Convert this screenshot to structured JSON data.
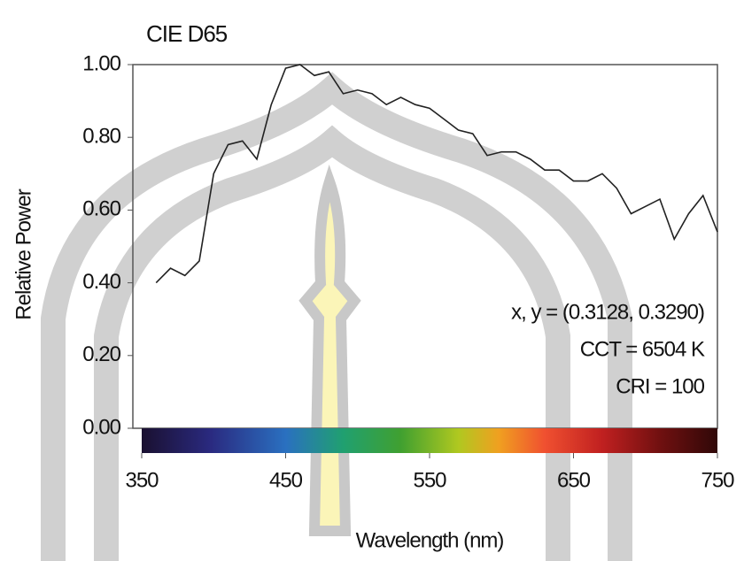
{
  "chart_data": {
    "type": "line",
    "title": "CIE D65",
    "x_label": "Wavelength (nm)",
    "y_label": "Relative Power",
    "x": [
      360,
      370,
      380,
      390,
      400,
      410,
      420,
      430,
      440,
      450,
      460,
      470,
      480,
      490,
      500,
      510,
      520,
      530,
      540,
      550,
      560,
      570,
      580,
      590,
      600,
      610,
      620,
      630,
      640,
      650,
      660,
      670,
      680,
      690,
      700,
      710,
      720,
      730,
      740,
      750
    ],
    "values": [
      0.4,
      0.44,
      0.42,
      0.46,
      0.7,
      0.78,
      0.79,
      0.74,
      0.89,
      0.99,
      1.0,
      0.97,
      0.98,
      0.92,
      0.93,
      0.92,
      0.89,
      0.91,
      0.89,
      0.88,
      0.85,
      0.82,
      0.81,
      0.75,
      0.76,
      0.76,
      0.74,
      0.71,
      0.71,
      0.68,
      0.68,
      0.7,
      0.66,
      0.59,
      0.61,
      0.63,
      0.52,
      0.59,
      0.64,
      0.54
    ],
    "color": "#222222",
    "xlim": [
      350,
      750
    ],
    "xticks": [
      350,
      450,
      550,
      650,
      750
    ],
    "ylim": [
      0,
      1
    ],
    "yticks": [
      {
        "value": 0,
        "label": "0.00"
      },
      {
        "value": 0.2,
        "label": "0.20"
      },
      {
        "value": 0.4,
        "label": "0.40"
      },
      {
        "value": 0.6,
        "label": "0.60"
      },
      {
        "value": 0.8,
        "label": "0.80"
      },
      {
        "value": 1,
        "label": "1.00"
      }
    ],
    "annotations": [
      "x, y = (0.3128, 0.3290)",
      "CCT = 6504 K",
      "CRI = 100"
    ]
  }
}
